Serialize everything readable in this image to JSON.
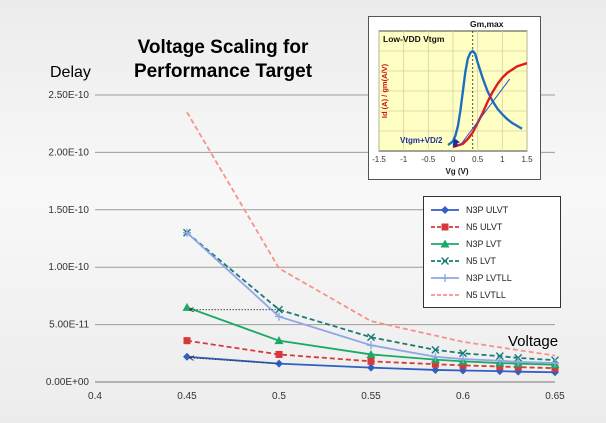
{
  "title_line1": "Voltage Scaling for",
  "title_line2": "Performance Target",
  "ylabel": "Delay",
  "xlabel": "Voltage",
  "chart_data": [
    {
      "type": "line",
      "title": "Voltage Scaling for Performance Target",
      "xlabel": "Voltage",
      "ylabel": "Delay",
      "xlim": [
        0.4,
        0.65
      ],
      "ylim": [
        0,
        2.5e-10
      ],
      "xticks": [
        0.4,
        0.45,
        0.5,
        0.55,
        0.6,
        0.65
      ],
      "xtick_labels": [
        "0.4",
        "0.45",
        "0.5",
        "0.55",
        "0.6",
        "0.65"
      ],
      "yticks": [
        0,
        5e-11,
        1e-10,
        1.5e-10,
        2e-10,
        2.5e-10
      ],
      "ytick_labels": [
        "0.00E+00",
        "5.00E-11",
        "1.00E-10",
        "1.50E-10",
        "2.00E-10",
        "2.50E-10"
      ],
      "grid": "horizontal",
      "legend_position": "right",
      "series": [
        {
          "name": "N3P ULVT",
          "color": "#2f5fc4",
          "dash": "solid",
          "marker": "diamond",
          "x": [
            0.45,
            0.5,
            0.55,
            0.585,
            0.6,
            0.62,
            0.63,
            0.65
          ],
          "y": [
            2.2e-11,
            1.6e-11,
            1.25e-11,
            1.05e-11,
            1e-11,
            9.5e-12,
            9e-12,
            8.5e-12
          ]
        },
        {
          "name": "N5 ULVT",
          "color": "#d9383a",
          "dash": "dashed",
          "marker": "square",
          "x": [
            0.45,
            0.5,
            0.55,
            0.585,
            0.6,
            0.62,
            0.63,
            0.65
          ],
          "y": [
            3.6e-11,
            2.4e-11,
            1.8e-11,
            1.55e-11,
            1.45e-11,
            1.35e-11,
            1.3e-11,
            1.2e-11
          ]
        },
        {
          "name": "N3P LVT",
          "color": "#1aaa66",
          "dash": "solid",
          "marker": "triangle",
          "x": [
            0.45,
            0.5,
            0.55,
            0.585,
            0.6,
            0.62,
            0.63,
            0.65
          ],
          "y": [
            6.5e-11,
            3.6e-11,
            2.4e-11,
            1.95e-11,
            1.8e-11,
            1.65e-11,
            1.6e-11,
            1.5e-11
          ]
        },
        {
          "name": "N5 LVT",
          "color": "#1a7a78",
          "dash": "dashed",
          "marker": "x",
          "x": [
            0.45,
            0.5,
            0.55,
            0.585,
            0.6,
            0.62,
            0.63,
            0.65
          ],
          "y": [
            1.3e-10,
            6.3e-11,
            3.9e-11,
            2.8e-11,
            2.5e-11,
            2.25e-11,
            2.1e-11,
            1.9e-11
          ]
        },
        {
          "name": "N3P LVTLL",
          "color": "#8ea7e6",
          "dash": "solid",
          "marker": "plus",
          "x": [
            0.45,
            0.5,
            0.55,
            0.585,
            0.6,
            0.62,
            0.63,
            0.65
          ],
          "y": [
            1.3e-10,
            5.7e-11,
            3.2e-11,
            2.2e-11,
            2e-11,
            1.85e-11,
            1.75e-11,
            1.65e-11
          ]
        },
        {
          "name": "N5 LVTLL",
          "color": "#f4938a",
          "dash": "dashed",
          "marker": "none",
          "x": [
            0.45,
            0.5,
            0.55,
            0.6,
            0.65
          ],
          "y": [
            2.35e-10,
            9.9e-11,
            5.3e-11,
            3.5e-11,
            2.3e-11
          ]
        }
      ],
      "annotations": [
        {
          "type": "arrow",
          "from": [
            0.5,
            6.3e-11
          ],
          "to": [
            0.45,
            6.3e-11
          ]
        },
        {
          "type": "arrow",
          "from": [
            0.5,
            1.6e-11
          ],
          "to": [
            0.45,
            2.1e-11
          ]
        }
      ]
    },
    {
      "type": "line",
      "title": "Low-VDD Vtgm",
      "xlabel": "Vg (V)",
      "ylabel": "Id (A) / gm(A/V)",
      "xlim": [
        -1.5,
        1.5
      ],
      "xticks": [
        -1.5,
        -1,
        -0.5,
        0,
        0.5,
        1,
        1.5
      ],
      "xtick_labels": [
        "-1.5",
        "-1",
        "-0.5",
        "0",
        "0.5",
        "1",
        "1.5"
      ],
      "annotations_text": [
        "Gm,max",
        "Vtgm+VD/2"
      ],
      "series": [
        {
          "label": "gm",
          "color": "#1f6fc1",
          "x": [
            -0.1,
            0.0,
            0.05,
            0.1,
            0.15,
            0.2,
            0.25,
            0.3,
            0.35,
            0.4,
            0.45,
            0.5,
            0.6,
            0.7,
            0.8,
            0.9,
            1.0,
            1.1,
            1.2,
            1.3,
            1.4
          ],
          "y": [
            0.02,
            0.06,
            0.12,
            0.22,
            0.38,
            0.58,
            0.78,
            0.92,
            0.98,
            1.0,
            0.97,
            0.88,
            0.72,
            0.58,
            0.48,
            0.4,
            0.34,
            0.29,
            0.25,
            0.22,
            0.19
          ]
        },
        {
          "label": "Id",
          "color": "#e01b1b",
          "x": [
            0.0,
            0.1,
            0.2,
            0.3,
            0.4,
            0.5,
            0.6,
            0.7,
            0.8,
            0.9,
            1.0,
            1.1,
            1.2,
            1.3,
            1.4,
            1.5
          ],
          "y": [
            0.0,
            0.01,
            0.02,
            0.05,
            0.09,
            0.15,
            0.21,
            0.28,
            0.34,
            0.39,
            0.43,
            0.46,
            0.48,
            0.5,
            0.51,
            0.52
          ]
        }
      ]
    }
  ]
}
